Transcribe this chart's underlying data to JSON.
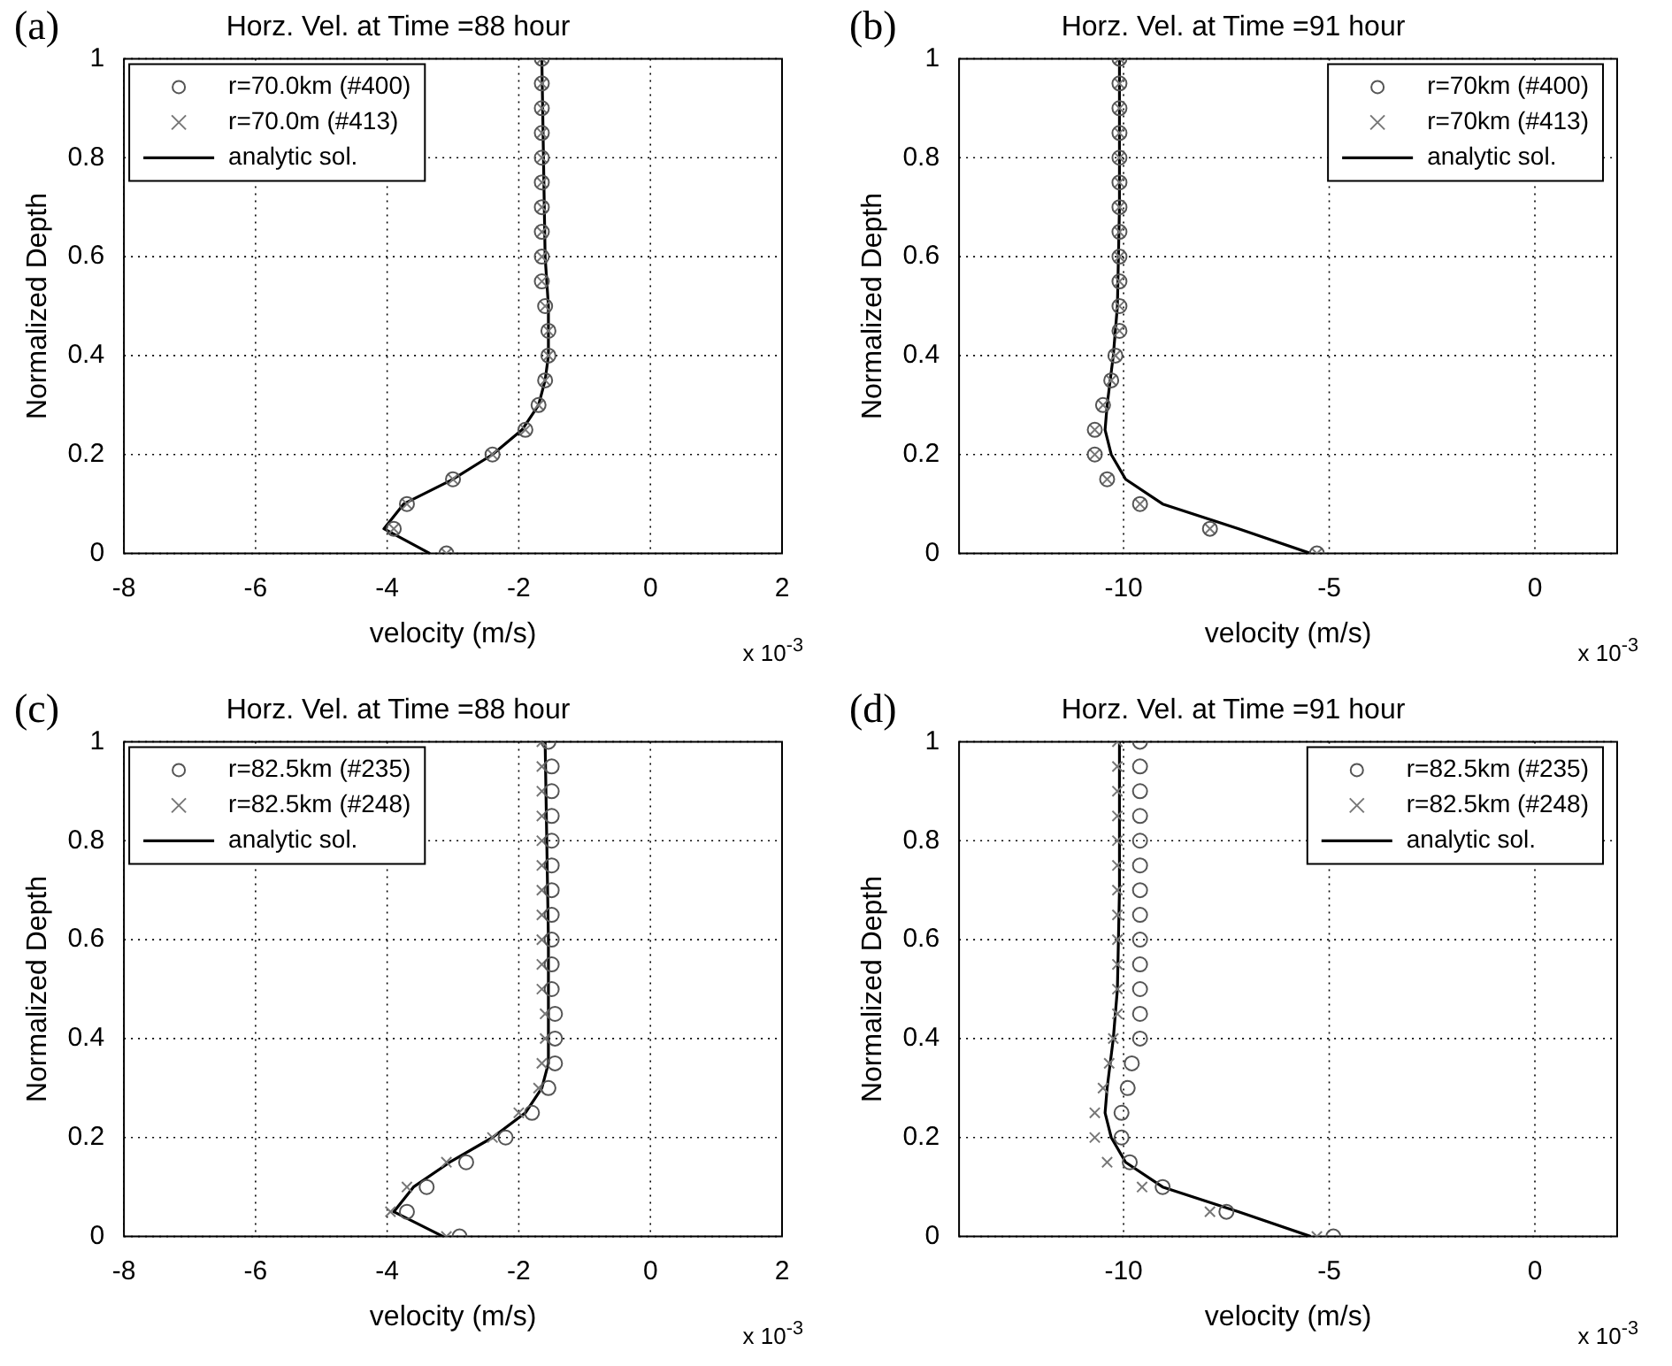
{
  "chart_data": [
    {
      "type": "scatter",
      "title": "Horz. Vel. at Time =88 hour",
      "xlabel": "velocity (m/s)",
      "ylabel": "Normalized Depth",
      "annotations": [
        "(a)",
        "x 10$^{-3}$"
      ],
      "xlim": [
        -8,
        2
      ],
      "xticks": [
        -8,
        -6,
        -4,
        -2,
        0,
        2
      ],
      "ylim": [
        0,
        1
      ],
      "yticks": [
        0,
        0.2,
        0.4,
        0.6,
        0.8,
        1
      ],
      "grid": true,
      "legend": "top left",
      "series": [
        {
          "name": "r=70.0km (#400)",
          "color": "#555555",
          "marker": "circle",
          "x": [
            -3.1,
            -3.9,
            -3.7,
            -3.0,
            -2.4,
            -1.9,
            -1.7,
            -1.6,
            -1.55,
            -1.55,
            -1.6,
            -1.65,
            -1.65,
            -1.65,
            -1.65,
            -1.65,
            -1.65,
            -1.65,
            -1.65,
            -1.65,
            -1.65
          ],
          "values": [
            0,
            0.05,
            0.1,
            0.15,
            0.2,
            0.25,
            0.3,
            0.35,
            0.4,
            0.45,
            0.5,
            0.55,
            0.6,
            0.65,
            0.7,
            0.75,
            0.8,
            0.85,
            0.9,
            0.95,
            1
          ]
        },
        {
          "name": "r=70.0m (#413)",
          "color": "#777777",
          "marker": "cross",
          "x": [
            -3.1,
            -3.9,
            -3.7,
            -3.0,
            -2.4,
            -1.9,
            -1.7,
            -1.6,
            -1.55,
            -1.55,
            -1.6,
            -1.65,
            -1.65,
            -1.65,
            -1.65,
            -1.65,
            -1.65,
            -1.65,
            -1.65,
            -1.65,
            -1.65
          ],
          "values": [
            0,
            0.05,
            0.1,
            0.15,
            0.2,
            0.25,
            0.3,
            0.35,
            0.4,
            0.45,
            0.5,
            0.55,
            0.6,
            0.65,
            0.7,
            0.75,
            0.8,
            0.85,
            0.9,
            0.95,
            1
          ]
        },
        {
          "name": "analytic sol.",
          "type": "line",
          "color": "#000000",
          "marker": "none",
          "x": [
            -3.35,
            -4.05,
            -3.75,
            -3.0,
            -2.4,
            -1.95,
            -1.7,
            -1.6,
            -1.55,
            -1.55,
            -1.6,
            -1.65
          ],
          "values": [
            0,
            0.05,
            0.1,
            0.15,
            0.2,
            0.25,
            0.3,
            0.35,
            0.4,
            0.5,
            0.6,
            1
          ]
        }
      ]
    },
    {
      "type": "scatter",
      "title": "Horz. Vel. at Time =91 hour",
      "xlabel": "velocity (m/s)",
      "ylabel": "Normalized Depth",
      "annotations": [
        "(b)",
        "x 10$^{-3}$"
      ],
      "xlim": [
        -14,
        2
      ],
      "xticks": [
        -10,
        -5,
        0
      ],
      "ylim": [
        0,
        1
      ],
      "yticks": [
        0,
        0.2,
        0.4,
        0.6,
        0.8,
        1
      ],
      "grid": true,
      "legend": "top right",
      "series": [
        {
          "name": "r=70km (#400)",
          "color": "#555555",
          "marker": "circle",
          "x": [
            -5.3,
            -7.9,
            -9.6,
            -10.4,
            -10.7,
            -10.7,
            -10.5,
            -10.3,
            -10.2,
            -10.1,
            -10.1,
            -10.1,
            -10.1,
            -10.1,
            -10.1,
            -10.1,
            -10.1,
            -10.1,
            -10.1,
            -10.1,
            -10.1
          ],
          "values": [
            0,
            0.05,
            0.1,
            0.15,
            0.2,
            0.25,
            0.3,
            0.35,
            0.4,
            0.45,
            0.5,
            0.55,
            0.6,
            0.65,
            0.7,
            0.75,
            0.8,
            0.85,
            0.9,
            0.95,
            1
          ]
        },
        {
          "name": "r=70km (#413)",
          "color": "#777777",
          "marker": "cross",
          "x": [
            -5.3,
            -7.9,
            -9.6,
            -10.4,
            -10.7,
            -10.7,
            -10.5,
            -10.3,
            -10.2,
            -10.1,
            -10.1,
            -10.1,
            -10.1,
            -10.1,
            -10.1,
            -10.1,
            -10.1,
            -10.1,
            -10.1,
            -10.1,
            -10.1
          ],
          "values": [
            0,
            0.05,
            0.1,
            0.15,
            0.2,
            0.25,
            0.3,
            0.35,
            0.4,
            0.45,
            0.5,
            0.55,
            0.6,
            0.65,
            0.7,
            0.75,
            0.8,
            0.85,
            0.9,
            0.95,
            1
          ]
        },
        {
          "name": "analytic sol.",
          "type": "line",
          "color": "#000000",
          "marker": "none",
          "x": [
            -5.45,
            -7.2,
            -9.05,
            -9.95,
            -10.3,
            -10.45,
            -10.4,
            -10.25,
            -10.15,
            -10.1,
            -10.1
          ],
          "values": [
            0,
            0.05,
            0.1,
            0.15,
            0.2,
            0.25,
            0.3,
            0.4,
            0.5,
            0.7,
            1
          ]
        }
      ]
    },
    {
      "type": "scatter",
      "title": "Horz. Vel. at Time =88 hour",
      "xlabel": "velocity (m/s)",
      "ylabel": "Normalized Depth",
      "annotations": [
        "(c)",
        "x 10$^{-3}$"
      ],
      "xlim": [
        -8,
        2
      ],
      "xticks": [
        -8,
        -6,
        -4,
        -2,
        0,
        2
      ],
      "ylim": [
        0,
        1
      ],
      "yticks": [
        0,
        0.2,
        0.4,
        0.6,
        0.8,
        1
      ],
      "grid": true,
      "legend": "top left",
      "series": [
        {
          "name": "r=82.5km (#235)",
          "color": "#555555",
          "marker": "circle",
          "x": [
            -2.9,
            -3.7,
            -3.4,
            -2.8,
            -2.2,
            -1.8,
            -1.55,
            -1.45,
            -1.45,
            -1.45,
            -1.5,
            -1.5,
            -1.5,
            -1.5,
            -1.5,
            -1.5,
            -1.5,
            -1.5,
            -1.5,
            -1.5,
            -1.55
          ],
          "values": [
            0,
            0.05,
            0.1,
            0.15,
            0.2,
            0.25,
            0.3,
            0.35,
            0.4,
            0.45,
            0.5,
            0.55,
            0.6,
            0.65,
            0.7,
            0.75,
            0.8,
            0.85,
            0.9,
            0.95,
            1
          ]
        },
        {
          "name": "r=82.5km (#248)",
          "color": "#777777",
          "marker": "cross",
          "x": [
            -3.1,
            -3.95,
            -3.7,
            -3.1,
            -2.4,
            -2.0,
            -1.7,
            -1.65,
            -1.6,
            -1.6,
            -1.65,
            -1.65,
            -1.65,
            -1.65,
            -1.65,
            -1.65,
            -1.65,
            -1.65,
            -1.65,
            -1.65,
            -1.65
          ],
          "values": [
            0,
            0.05,
            0.1,
            0.15,
            0.2,
            0.25,
            0.3,
            0.35,
            0.4,
            0.45,
            0.5,
            0.55,
            0.6,
            0.65,
            0.7,
            0.75,
            0.8,
            0.85,
            0.9,
            0.95,
            1
          ]
        },
        {
          "name": "analytic sol.",
          "type": "line",
          "color": "#000000",
          "marker": "none",
          "x": [
            -3.15,
            -3.9,
            -3.6,
            -3.05,
            -2.4,
            -1.9,
            -1.65,
            -1.55,
            -1.55,
            -1.55,
            -1.55,
            -1.6
          ],
          "values": [
            0,
            0.05,
            0.1,
            0.15,
            0.2,
            0.25,
            0.3,
            0.35,
            0.4,
            0.5,
            0.6,
            1
          ]
        }
      ]
    },
    {
      "type": "scatter",
      "title": "Horz. Vel. at Time =91 hour",
      "xlabel": "velocity (m/s)",
      "ylabel": "Normalized Depth",
      "annotations": [
        "(d)",
        "x 10$^{-3}$"
      ],
      "xlim": [
        -14,
        2
      ],
      "xticks": [
        -10,
        -5,
        0
      ],
      "ylim": [
        0,
        1
      ],
      "yticks": [
        0,
        0.2,
        0.4,
        0.6,
        0.8,
        1
      ],
      "grid": true,
      "legend": "top right",
      "series": [
        {
          "name": "r=82.5km (#235)",
          "color": "#555555",
          "marker": "circle",
          "x": [
            -4.9,
            -7.5,
            -9.05,
            -9.85,
            -10.05,
            -10.05,
            -9.9,
            -9.8,
            -9.6,
            -9.6,
            -9.6,
            -9.6,
            -9.6,
            -9.6,
            -9.6,
            -9.6,
            -9.6,
            -9.6,
            -9.6,
            -9.6,
            -9.6
          ],
          "values": [
            0,
            0.05,
            0.1,
            0.15,
            0.2,
            0.25,
            0.3,
            0.35,
            0.4,
            0.45,
            0.5,
            0.55,
            0.6,
            0.65,
            0.7,
            0.75,
            0.8,
            0.85,
            0.9,
            0.95,
            1
          ]
        },
        {
          "name": "r=82.5km (#248)",
          "color": "#777777",
          "marker": "cross",
          "x": [
            -5.3,
            -7.9,
            -9.55,
            -10.4,
            -10.7,
            -10.7,
            -10.5,
            -10.35,
            -10.25,
            -10.15,
            -10.15,
            -10.15,
            -10.15,
            -10.15,
            -10.15,
            -10.15,
            -10.15,
            -10.15,
            -10.15,
            -10.15,
            -10.15
          ],
          "values": [
            0,
            0.05,
            0.1,
            0.15,
            0.2,
            0.25,
            0.3,
            0.35,
            0.4,
            0.45,
            0.5,
            0.55,
            0.6,
            0.65,
            0.7,
            0.75,
            0.8,
            0.85,
            0.9,
            0.95,
            1
          ]
        },
        {
          "name": "analytic sol.",
          "type": "line",
          "color": "#000000",
          "marker": "none",
          "x": [
            -5.45,
            -7.2,
            -9.05,
            -9.95,
            -10.3,
            -10.45,
            -10.4,
            -10.25,
            -10.15,
            -10.1,
            -10.1
          ],
          "values": [
            0,
            0.05,
            0.1,
            0.15,
            0.2,
            0.25,
            0.3,
            0.4,
            0.5,
            0.7,
            1
          ]
        }
      ]
    }
  ]
}
